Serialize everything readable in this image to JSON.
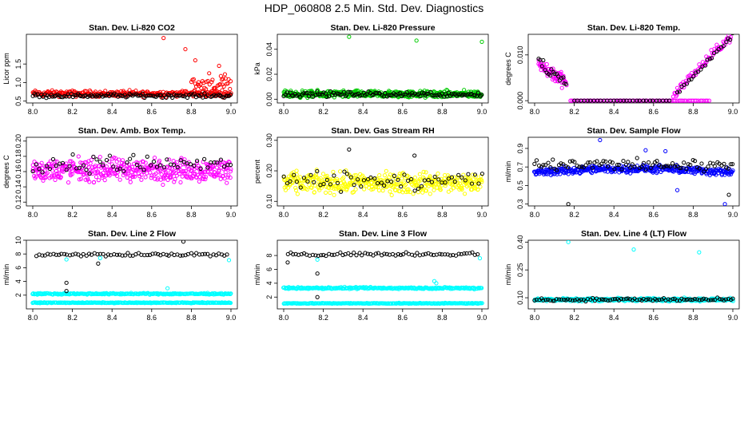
{
  "page": {
    "title": "HDP_060808  2.5 Min. Std. Dev. Diagnostics"
  },
  "colors": {
    "red": "#ff0000",
    "green": "#00cc00",
    "magenta": "#ff00ff",
    "yellow": "#ffff00",
    "blue": "#0000ff",
    "cyan": "#00ffff",
    "black": "#000000"
  },
  "chart_data": [
    {
      "type": "scatter",
      "title": "Stan. Dev. Li-820 CO2",
      "ylabel": "Licor ppm",
      "xlim": [
        8.0,
        9.0
      ],
      "ylim": [
        0.45,
        2.3
      ],
      "xticks": [
        "8.0",
        "8.2",
        "8.4",
        "8.6",
        "8.8",
        "9.0"
      ],
      "yticks": [
        {
          "v": 0.5,
          "label": "0.5"
        },
        {
          "v": 1.0,
          "label": "1.0"
        },
        {
          "v": 1.5,
          "label": "1.5"
        }
      ],
      "series": [
        {
          "color": "red",
          "x": [
            8.0,
            9.0
          ],
          "y_base": 0.7,
          "y_spread": 0.12,
          "n": 300
        },
        {
          "color": "black",
          "x": [
            8.0,
            9.0
          ],
          "y_base": 0.65,
          "y_spread": 0.08,
          "n": 120
        },
        {
          "color": "red",
          "x": [
            8.8,
            9.0
          ],
          "y_base": 0.95,
          "y_spread": 0.35,
          "n": 40
        },
        {
          "color": "red",
          "points": [
            [
              8.66,
              2.2
            ],
            [
              8.77,
              1.9
            ],
            [
              8.82,
              1.6
            ],
            [
              8.89,
              1.25
            ],
            [
              8.94,
              1.45
            ],
            [
              8.96,
              1.1
            ]
          ]
        }
      ]
    },
    {
      "type": "scatter",
      "title": "Stan. Dev. Li-820 Pressure",
      "ylabel": "kPa",
      "xlim": [
        8.0,
        9.0
      ],
      "ylim": [
        -0.003,
        0.052
      ],
      "xticks": [
        "8.0",
        "8.2",
        "8.4",
        "8.6",
        "8.8",
        "9.0"
      ],
      "yticks": [
        {
          "v": 0.0,
          "label": "0.00"
        },
        {
          "v": 0.02,
          "label": "0.02"
        },
        {
          "v": 0.04,
          "label": "0.04"
        }
      ],
      "series": [
        {
          "color": "green",
          "x": [
            8.0,
            9.0
          ],
          "y_base": 0.004,
          "y_spread": 0.004,
          "n": 500
        },
        {
          "color": "black",
          "x": [
            8.0,
            9.0
          ],
          "y_base": 0.004,
          "y_spread": 0.003,
          "n": 120
        },
        {
          "color": "green",
          "points": [
            [
              8.33,
              0.05
            ],
            [
              8.67,
              0.047
            ],
            [
              9.0,
              0.046
            ]
          ]
        }
      ]
    },
    {
      "type": "scatter",
      "title": "Stan. Dev. Li-820 Temp.",
      "ylabel": "degrees C",
      "xlim": [
        8.0,
        9.0
      ],
      "ylim": [
        -0.0005,
        0.0145
      ],
      "xticks": [
        "8.0",
        "8.2",
        "8.4",
        "8.6",
        "8.8",
        "9.0"
      ],
      "yticks": [
        {
          "v": 0.0,
          "label": "0.000"
        },
        {
          "v": 0.01,
          "label": "0.010"
        }
      ],
      "series": [
        {
          "color": "magenta",
          "x": [
            8.02,
            8.16
          ],
          "y_base": 0.006,
          "y_spread": 0.0025,
          "n": 60,
          "trend": -0.03
        },
        {
          "color": "black",
          "x": [
            8.02,
            8.16
          ],
          "y_base": 0.006,
          "y_spread": 0.002,
          "n": 18,
          "trend": -0.03
        },
        {
          "color": "magenta",
          "x": [
            8.18,
            8.88
          ],
          "y_base": 0.0,
          "y_spread": 0.0,
          "n": 80
        },
        {
          "color": "black",
          "x": [
            8.2,
            8.68
          ],
          "y_base": 0.0,
          "y_spread": 0.0,
          "n": 30
        },
        {
          "color": "magenta",
          "x": [
            8.7,
            9.0
          ],
          "y_base": 0.008,
          "y_spread": 0.0015,
          "n": 70,
          "trend": 0.045
        },
        {
          "color": "black",
          "x": [
            8.72,
            9.0
          ],
          "y_base": 0.008,
          "y_spread": 0.0012,
          "n": 25,
          "trend": 0.045
        }
      ]
    },
    {
      "type": "scatter",
      "title": "Stan. Dev. Amb. Box Temp.",
      "ylabel": "degrees C",
      "xlim": [
        8.0,
        9.0
      ],
      "ylim": [
        0.115,
        0.205
      ],
      "xticks": [
        "8.0",
        "8.2",
        "8.4",
        "8.6",
        "8.8",
        "9.0"
      ],
      "yticks": [
        {
          "v": 0.12,
          "label": "0.12"
        },
        {
          "v": 0.14,
          "label": "0.14"
        },
        {
          "v": 0.16,
          "label": "0.16"
        },
        {
          "v": 0.18,
          "label": "0.18"
        },
        {
          "v": 0.2,
          "label": "0.20"
        }
      ],
      "series": [
        {
          "color": "magenta",
          "x": [
            8.0,
            9.0
          ],
          "y_base": 0.162,
          "y_spread": 0.022,
          "n": 420
        },
        {
          "color": "black",
          "x": [
            8.0,
            9.0
          ],
          "y_base": 0.17,
          "y_spread": 0.018,
          "n": 60
        }
      ]
    },
    {
      "type": "scatter",
      "title": "Stan. Dev. Gas Stream RH",
      "ylabel": "percent",
      "xlim": [
        8.0,
        9.0
      ],
      "ylim": [
        0.085,
        0.31
      ],
      "xticks": [
        "8.0",
        "8.2",
        "8.4",
        "8.6",
        "8.8",
        "9.0"
      ],
      "yticks": [
        {
          "v": 0.1,
          "label": "0.10"
        },
        {
          "v": 0.2,
          "label": "0.20"
        },
        {
          "v": 0.3,
          "label": "0.30"
        }
      ],
      "series": [
        {
          "color": "yellow",
          "x": [
            8.0,
            9.0
          ],
          "y_base": 0.16,
          "y_spread": 0.05,
          "n": 420
        },
        {
          "color": "black",
          "x": [
            8.0,
            9.0
          ],
          "y_base": 0.17,
          "y_spread": 0.045,
          "n": 60
        },
        {
          "color": "black",
          "points": [
            [
              8.33,
              0.27
            ],
            [
              8.66,
              0.25
            ]
          ]
        }
      ]
    },
    {
      "type": "scatter",
      "title": "Stan. Dev. Sample Flow",
      "ylabel": "ml/min",
      "xlim": [
        8.0,
        9.0
      ],
      "ylim": [
        0.28,
        1.02
      ],
      "xticks": [
        "8.0",
        "8.2",
        "8.4",
        "8.6",
        "8.8",
        "9.0"
      ],
      "yticks": [
        {
          "v": 0.3,
          "label": "0.3"
        },
        {
          "v": 0.5,
          "label": "0.5"
        },
        {
          "v": 0.7,
          "label": "0.7"
        },
        {
          "v": 0.9,
          "label": "0.9"
        }
      ],
      "series": [
        {
          "color": "blue",
          "x": [
            8.0,
            9.0
          ],
          "y_base": 0.64,
          "y_spread": 0.06,
          "n": 380,
          "hump": 0.04
        },
        {
          "color": "black",
          "x": [
            8.0,
            9.0
          ],
          "y_base": 0.72,
          "y_spread": 0.1,
          "n": 90
        },
        {
          "color": "blue",
          "points": [
            [
              8.33,
              0.99
            ],
            [
              8.56,
              0.88
            ],
            [
              8.66,
              0.87
            ],
            [
              8.96,
              0.3
            ],
            [
              8.72,
              0.45
            ]
          ]
        },
        {
          "color": "black",
          "points": [
            [
              8.17,
              0.3
            ],
            [
              8.98,
              0.4
            ]
          ]
        }
      ]
    },
    {
      "type": "scatter",
      "title": "Stan. Dev. Line 2 Flow",
      "ylabel": "ml/min",
      "xlim": [
        8.0,
        9.0
      ],
      "ylim": [
        0.0,
        10.0
      ],
      "xticks": [
        "8.0",
        "8.2",
        "8.4",
        "8.6",
        "8.8",
        "9.0"
      ],
      "yticks": [
        {
          "v": 2,
          "label": "2"
        },
        {
          "v": 4,
          "label": "4"
        },
        {
          "v": 6,
          "label": "6"
        },
        {
          "v": 8,
          "label": "8"
        },
        {
          "v": 10,
          "label": "10"
        }
      ],
      "series": [
        {
          "color": "cyan",
          "x": [
            8.0,
            9.0
          ],
          "y_base": 2.2,
          "y_spread": 0.15,
          "n": 260
        },
        {
          "color": "cyan",
          "x": [
            8.0,
            9.0
          ],
          "y_base": 0.9,
          "y_spread": 0.08,
          "n": 260
        },
        {
          "color": "black",
          "x": [
            8.02,
            8.98
          ],
          "y_base": 7.9,
          "y_spread": 0.35,
          "n": 70
        },
        {
          "color": "black",
          "points": [
            [
              8.17,
              3.8
            ],
            [
              8.17,
              2.6
            ],
            [
              8.33,
              6.6
            ],
            [
              8.76,
              9.8
            ]
          ]
        },
        {
          "color": "cyan",
          "points": [
            [
              8.17,
              7.2
            ],
            [
              8.34,
              7.4
            ],
            [
              8.68,
              3.0
            ],
            [
              8.99,
              7.1
            ]
          ]
        }
      ]
    },
    {
      "type": "scatter",
      "title": "Stan. Dev. Line 3 Flow",
      "ylabel": "ml/min",
      "xlim": [
        8.0,
        9.0
      ],
      "ylim": [
        0.3,
        10.2
      ],
      "xticks": [
        "8.0",
        "8.2",
        "8.4",
        "8.6",
        "8.8",
        "9.0"
      ],
      "yticks": [
        {
          "v": 2,
          "label": "2"
        },
        {
          "v": 4,
          "label": "4"
        },
        {
          "v": 6,
          "label": "6"
        },
        {
          "v": 8,
          "label": "8"
        }
      ],
      "series": [
        {
          "color": "cyan",
          "x": [
            8.0,
            9.0
          ],
          "y_base": 3.3,
          "y_spread": 0.2,
          "n": 260
        },
        {
          "color": "cyan",
          "x": [
            8.0,
            9.0
          ],
          "y_base": 1.1,
          "y_spread": 0.08,
          "n": 260
        },
        {
          "color": "black",
          "x": [
            8.02,
            8.98
          ],
          "y_base": 8.2,
          "y_spread": 0.35,
          "n": 70
        },
        {
          "color": "black",
          "points": [
            [
              8.17,
              5.4
            ],
            [
              8.17,
              2.0
            ],
            [
              8.02,
              7.0
            ]
          ]
        },
        {
          "color": "cyan",
          "points": [
            [
              8.17,
              7.4
            ],
            [
              8.76,
              4.3
            ],
            [
              8.77,
              4.0
            ],
            [
              8.99,
              7.6
            ]
          ]
        }
      ]
    },
    {
      "type": "scatter",
      "title": "Stan. Dev. Line 4 (LT) Flow",
      "ylabel": "ml/min",
      "xlim": [
        8.0,
        9.0
      ],
      "ylim": [
        0.04,
        0.41
      ],
      "xticks": [
        "8.0",
        "8.2",
        "8.4",
        "8.6",
        "8.8",
        "9.0"
      ],
      "yticks": [
        {
          "v": 0.1,
          "label": "0.10"
        },
        {
          "v": 0.25,
          "label": "0.25"
        },
        {
          "v": 0.4,
          "label": "0.40"
        }
      ],
      "series": [
        {
          "color": "cyan",
          "x": [
            8.0,
            9.0
          ],
          "y_base": 0.09,
          "y_spread": 0.012,
          "n": 420
        },
        {
          "color": "black",
          "x": [
            8.0,
            9.0
          ],
          "y_base": 0.09,
          "y_spread": 0.012,
          "n": 90
        },
        {
          "color": "cyan",
          "points": [
            [
              8.17,
              0.4
            ],
            [
              8.5,
              0.36
            ],
            [
              8.83,
              0.345
            ]
          ]
        }
      ]
    }
  ]
}
